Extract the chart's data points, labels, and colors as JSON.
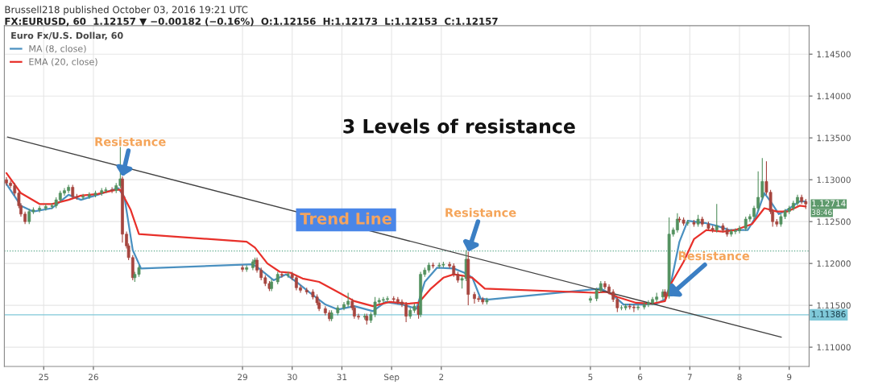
{
  "chart_data": {
    "type": "candlestick",
    "title": "Brussell218 published October 03, 2016 19:21 UTC",
    "subtitle": "FX:EURUSD, 60  1.12157 ▼ −0.00182 (−0.16%)  O:1.12156  H:1.12173  L:1.12153  C:1.12157",
    "legend_title": "Euro Fx/U.S. Dollar, 60",
    "x": [
      "2016-08-24T06:00",
      "2016-08-24T08:00",
      "2016-08-24T10:00",
      "2016-08-24T12:00",
      "2016-08-24T13:00",
      "2016-08-24T15:00",
      "2016-08-24T17:00",
      "2016-08-24T19:00",
      "2016-08-24T22:00",
      "2016-08-25T01:00",
      "2016-08-25T04:00",
      "2016-08-25T06:00",
      "2016-08-25T08:00",
      "2016-08-25T10:00",
      "2016-08-25T12:00",
      "2016-08-25T14:00",
      "2016-08-25T16:00",
      "2016-08-25T19:00",
      "2016-08-25T22:00",
      "2016-08-26T01:00",
      "2016-08-26T04:00",
      "2016-08-26T06:00",
      "2016-08-26T09:00",
      "2016-08-26T11:00",
      "2016-08-26T13:00",
      "2016-08-26T14:00",
      "2016-08-26T16:00",
      "2016-08-26T17:00",
      "2016-08-26T19:00",
      "2016-08-26T20:00",
      "2016-08-26T22:00",
      "2016-08-29T00:00",
      "2016-08-29T02:00",
      "2016-08-29T05:00",
      "2016-08-29T06:00",
      "2016-08-29T07:00",
      "2016-08-29T09:00",
      "2016-08-29T11:00",
      "2016-08-29T13:00",
      "2016-08-29T14:00",
      "2016-08-29T17:00",
      "2016-08-29T19:00",
      "2016-08-29T22:00",
      "2016-08-30T00:00",
      "2016-08-30T02:00",
      "2016-08-30T04:00",
      "2016-08-30T07:00",
      "2016-08-30T10:00",
      "2016-08-30T12:00",
      "2016-08-30T13:00",
      "2016-08-30T16:00",
      "2016-08-30T18:00",
      "2016-08-30T19:00",
      "2016-08-30T22:00",
      "2016-08-31T01:00",
      "2016-08-31T03:00",
      "2016-08-31T05:00",
      "2016-08-31T06:00",
      "2016-08-31T08:00",
      "2016-08-31T11:00",
      "2016-08-31T12:00",
      "2016-08-31T14:00",
      "2016-08-31T16:00",
      "2016-08-31T18:00",
      "2016-08-31T20:00",
      "2016-08-31T22:00",
      "2016-09-01T01:00",
      "2016-09-01T03:00",
      "2016-09-01T05:00",
      "2016-09-01T07:00",
      "2016-09-01T09:00",
      "2016-09-01T11:00",
      "2016-09-01T13:00",
      "2016-09-01T14:00",
      "2016-09-01T16:00",
      "2016-09-01T18:00",
      "2016-09-01T20:00",
      "2016-09-01T23:00",
      "2016-09-02T01:00",
      "2016-09-02T04:00",
      "2016-09-02T06:00",
      "2016-09-02T08:00",
      "2016-09-02T10:00",
      "2016-09-02T12:00",
      "2016-09-02T13:00",
      "2016-09-02T16:00",
      "2016-09-02T18:00",
      "2016-09-02T20:00",
      "2016-09-02T22:00",
      "2016-09-05T00:00",
      "2016-09-05T03:00",
      "2016-09-05T05:00",
      "2016-09-05T07:00",
      "2016-09-05T09:00",
      "2016-09-05T11:00",
      "2016-09-05T13:00",
      "2016-09-05T15:00",
      "2016-09-05T17:00",
      "2016-09-05T19:00",
      "2016-09-05T21:00",
      "2016-09-05T23:00",
      "2016-09-06T02:00",
      "2016-09-06T04:00",
      "2016-09-06T06:00",
      "2016-09-06T08:00",
      "2016-09-06T11:00",
      "2016-09-06T12:00",
      "2016-09-06T14:00",
      "2016-09-06T16:00",
      "2016-09-06T18:00",
      "2016-09-06T19:00",
      "2016-09-06T21:00",
      "2016-09-06T23:00",
      "2016-09-07T02:00",
      "2016-09-07T04:00",
      "2016-09-07T06:00",
      "2016-09-07T09:00",
      "2016-09-07T11:00",
      "2016-09-07T13:00",
      "2016-09-07T16:00",
      "2016-09-07T18:00",
      "2016-09-07T20:00",
      "2016-09-07T22:00",
      "2016-09-08T00:00",
      "2016-09-08T03:00",
      "2016-09-08T05:00",
      "2016-09-08T07:00",
      "2016-09-08T09:00",
      "2016-09-08T11:00",
      "2016-09-08T13:00",
      "2016-09-08T15:00",
      "2016-09-08T16:00",
      "2016-09-08T18:00",
      "2016-09-08T20:00",
      "2016-09-08T22:00",
      "2016-09-09T00:00",
      "2016-09-09T02:00",
      "2016-09-09T04:00",
      "2016-09-09T06:00",
      "2016-09-09T08:00"
    ],
    "ohlc": [
      [
        1.13,
        1.1303,
        1.1293,
        1.1296
      ],
      [
        1.1296,
        1.1299,
        1.129,
        1.1293
      ],
      [
        1.1293,
        1.1296,
        1.1281,
        1.1284
      ],
      [
        1.1284,
        1.1287,
        1.1266,
        1.1269
      ],
      [
        1.1269,
        1.1272,
        1.1256,
        1.1259
      ],
      [
        1.1259,
        1.1262,
        1.1247,
        1.125
      ],
      [
        1.125,
        1.1265,
        1.1247,
        1.1262
      ],
      [
        1.1262,
        1.1267,
        1.1259,
        1.1264
      ],
      [
        1.1264,
        1.1269,
        1.1261,
        1.1266
      ],
      [
        1.1266,
        1.1271,
        1.1263,
        1.1268
      ],
      [
        1.1268,
        1.1272,
        1.1265,
        1.1269
      ],
      [
        1.1269,
        1.1279,
        1.1266,
        1.1276
      ],
      [
        1.1276,
        1.1287,
        1.1273,
        1.1284
      ],
      [
        1.1284,
        1.129,
        1.1281,
        1.1287
      ],
      [
        1.1287,
        1.1294,
        1.1284,
        1.1291
      ],
      [
        1.1291,
        1.1294,
        1.1277,
        1.128
      ],
      [
        1.128,
        1.1283,
        1.1276,
        1.1279
      ],
      [
        1.1279,
        1.1283,
        1.1276,
        1.128
      ],
      [
        1.128,
        1.1285,
        1.1277,
        1.1282
      ],
      [
        1.1282,
        1.1287,
        1.1279,
        1.1284
      ],
      [
        1.1284,
        1.129,
        1.1281,
        1.1287
      ],
      [
        1.1287,
        1.1291,
        1.1284,
        1.1288
      ],
      [
        1.1288,
        1.1291,
        1.1284,
        1.1287
      ],
      [
        1.1287,
        1.1296,
        1.1284,
        1.1293
      ],
      [
        1.1293,
        1.1339,
        1.129,
        1.1301
      ],
      [
        1.1301,
        1.1304,
        1.1225,
        1.1235
      ],
      [
        1.1235,
        1.1238,
        1.1218,
        1.1221
      ],
      [
        1.1221,
        1.1224,
        1.1204,
        1.1207
      ],
      [
        1.1207,
        1.121,
        1.118,
        1.1183
      ],
      [
        1.1183,
        1.119,
        1.1178,
        1.1187
      ],
      [
        1.1187,
        1.1198,
        1.1184,
        1.1195
      ],
      [
        1.1195,
        1.1198,
        1.119,
        1.1193
      ],
      [
        1.1193,
        1.1198,
        1.119,
        1.1195
      ],
      [
        1.1195,
        1.1205,
        1.1192,
        1.1202
      ],
      [
        1.1202,
        1.1207,
        1.1199,
        1.1204
      ],
      [
        1.1204,
        1.1207,
        1.1189,
        1.1192
      ],
      [
        1.1192,
        1.1195,
        1.118,
        1.1183
      ],
      [
        1.1183,
        1.1186,
        1.1173,
        1.1176
      ],
      [
        1.1176,
        1.1179,
        1.1167,
        1.117
      ],
      [
        1.117,
        1.1181,
        1.1167,
        1.1178
      ],
      [
        1.1178,
        1.119,
        1.1175,
        1.1187
      ],
      [
        1.1187,
        1.119,
        1.1183,
        1.1186
      ],
      [
        1.1186,
        1.119,
        1.1183,
        1.1187
      ],
      [
        1.1187,
        1.119,
        1.118,
        1.1183
      ],
      [
        1.1183,
        1.1186,
        1.1168,
        1.1171
      ],
      [
        1.1171,
        1.1174,
        1.1165,
        1.1168
      ],
      [
        1.1168,
        1.1171,
        1.1163,
        1.1166
      ],
      [
        1.1166,
        1.1169,
        1.1157,
        1.116
      ],
      [
        1.116,
        1.1163,
        1.115,
        1.1153
      ],
      [
        1.1153,
        1.1156,
        1.1143,
        1.1146
      ],
      [
        1.1146,
        1.1149,
        1.1138,
        1.1141
      ],
      [
        1.1141,
        1.1144,
        1.1131,
        1.1134
      ],
      [
        1.1134,
        1.1144,
        1.1131,
        1.1141
      ],
      [
        1.1141,
        1.115,
        1.1138,
        1.1147
      ],
      [
        1.1147,
        1.1154,
        1.1144,
        1.1151
      ],
      [
        1.1151,
        1.1165,
        1.1148,
        1.1155
      ],
      [
        1.1155,
        1.1158,
        1.1144,
        1.1147
      ],
      [
        1.1147,
        1.115,
        1.1134,
        1.1137
      ],
      [
        1.1137,
        1.114,
        1.1133,
        1.1136
      ],
      [
        1.1136,
        1.114,
        1.1133,
        1.1137
      ],
      [
        1.1137,
        1.114,
        1.1127,
        1.1132
      ],
      [
        1.1132,
        1.1142,
        1.1129,
        1.1139
      ],
      [
        1.1139,
        1.116,
        1.1136,
        1.1154
      ],
      [
        1.1154,
        1.1159,
        1.1151,
        1.1156
      ],
      [
        1.1156,
        1.116,
        1.1153,
        1.1157
      ],
      [
        1.1157,
        1.1161,
        1.1154,
        1.1158
      ],
      [
        1.1158,
        1.1161,
        1.1154,
        1.1157
      ],
      [
        1.1157,
        1.116,
        1.1151,
        1.1154
      ],
      [
        1.1154,
        1.1157,
        1.1148,
        1.1151
      ],
      [
        1.1151,
        1.1154,
        1.113,
        1.1137
      ],
      [
        1.1137,
        1.1147,
        1.1134,
        1.1144
      ],
      [
        1.1144,
        1.1152,
        1.1141,
        1.1149
      ],
      [
        1.1149,
        1.1152,
        1.1134,
        1.1139
      ],
      [
        1.1139,
        1.119,
        1.1136,
        1.1187
      ],
      [
        1.1187,
        1.1195,
        1.1184,
        1.1192
      ],
      [
        1.1192,
        1.1201,
        1.1189,
        1.1198
      ],
      [
        1.1198,
        1.1201,
        1.1194,
        1.1197
      ],
      [
        1.1197,
        1.1201,
        1.1194,
        1.1198
      ],
      [
        1.1198,
        1.1202,
        1.1195,
        1.1199
      ],
      [
        1.1199,
        1.1202,
        1.1194,
        1.1197
      ],
      [
        1.1197,
        1.12,
        1.1184,
        1.1187
      ],
      [
        1.1187,
        1.119,
        1.1177,
        1.118
      ],
      [
        1.118,
        1.1185,
        1.117,
        1.1182
      ],
      [
        1.1182,
        1.1216,
        1.1179,
        1.1205
      ],
      [
        1.1205,
        1.1214,
        1.115,
        1.1163
      ],
      [
        1.1163,
        1.1166,
        1.1152,
        1.1158
      ],
      [
        1.1158,
        1.1161,
        1.1154,
        1.1157
      ],
      [
        1.1157,
        1.116,
        1.1151,
        1.1154
      ],
      [
        1.1154,
        1.1159,
        1.1151,
        1.1156
      ],
      [
        1.1156,
        1.1161,
        1.1153,
        1.1158
      ],
      [
        1.1158,
        1.1171,
        1.1155,
        1.1168
      ],
      [
        1.1168,
        1.1179,
        1.1165,
        1.1176
      ],
      [
        1.1176,
        1.1179,
        1.1169,
        1.1172
      ],
      [
        1.1172,
        1.1175,
        1.1163,
        1.1166
      ],
      [
        1.1166,
        1.1169,
        1.1154,
        1.1157
      ],
      [
        1.1157,
        1.116,
        1.1142,
        1.1147
      ],
      [
        1.1147,
        1.115,
        1.1144,
        1.1147
      ],
      [
        1.1147,
        1.1152,
        1.1144,
        1.1149
      ],
      [
        1.1149,
        1.1152,
        1.1145,
        1.1148
      ],
      [
        1.1148,
        1.1151,
        1.1142,
        1.1147
      ],
      [
        1.1147,
        1.1151,
        1.1144,
        1.1148
      ],
      [
        1.1148,
        1.1154,
        1.1145,
        1.1151
      ],
      [
        1.1151,
        1.1156,
        1.1148,
        1.1153
      ],
      [
        1.1153,
        1.116,
        1.115,
        1.1157
      ],
      [
        1.1157,
        1.1165,
        1.1154,
        1.116
      ],
      [
        1.116,
        1.1169,
        1.1157,
        1.1166
      ],
      [
        1.1166,
        1.1169,
        1.1158,
        1.1161
      ],
      [
        1.1161,
        1.1255,
        1.1158,
        1.1235
      ],
      [
        1.1235,
        1.1243,
        1.1232,
        1.124
      ],
      [
        1.124,
        1.126,
        1.1237,
        1.1253
      ],
      [
        1.1253,
        1.1256,
        1.1249,
        1.1252
      ],
      [
        1.1252,
        1.1255,
        1.1245,
        1.1248
      ],
      [
        1.1248,
        1.1252,
        1.1245,
        1.1249
      ],
      [
        1.1249,
        1.1252,
        1.1244,
        1.1247
      ],
      [
        1.1247,
        1.1258,
        1.1244,
        1.1253
      ],
      [
        1.1253,
        1.1256,
        1.1244,
        1.1247
      ],
      [
        1.1247,
        1.125,
        1.1239,
        1.1242
      ],
      [
        1.1242,
        1.1245,
        1.1237,
        1.124
      ],
      [
        1.124,
        1.1271,
        1.1237,
        1.1245
      ],
      [
        1.1245,
        1.1248,
        1.1237,
        1.124
      ],
      [
        1.124,
        1.1243,
        1.1232,
        1.1235
      ],
      [
        1.1235,
        1.1241,
        1.1232,
        1.1238
      ],
      [
        1.1238,
        1.1242,
        1.1235,
        1.1239
      ],
      [
        1.1239,
        1.1245,
        1.1236,
        1.1242
      ],
      [
        1.1242,
        1.1256,
        1.1239,
        1.1253
      ],
      [
        1.1253,
        1.1259,
        1.125,
        1.1256
      ],
      [
        1.1256,
        1.1269,
        1.1253,
        1.1266
      ],
      [
        1.1266,
        1.131,
        1.1263,
        1.1279
      ],
      [
        1.1279,
        1.1326,
        1.1276,
        1.1298
      ],
      [
        1.1298,
        1.1322,
        1.1282,
        1.1285
      ],
      [
        1.1285,
        1.1288,
        1.1259,
        1.1262
      ],
      [
        1.1262,
        1.1265,
        1.1244,
        1.125
      ],
      [
        1.125,
        1.1253,
        1.1244,
        1.1247
      ],
      [
        1.1247,
        1.1259,
        1.1244,
        1.1256
      ],
      [
        1.1256,
        1.1265,
        1.1253,
        1.1262
      ],
      [
        1.1262,
        1.1269,
        1.1259,
        1.1266
      ],
      [
        1.1266,
        1.1275,
        1.1263,
        1.1272
      ],
      [
        1.1272,
        1.1282,
        1.1269,
        1.1279
      ],
      [
        1.1279,
        1.1282,
        1.1271,
        1.1274
      ],
      [
        1.1274,
        1.1277,
        1.1265,
        1.1271
      ]
    ],
    "colors": [
      "#a6453f",
      "#a6453f",
      "#a6453f",
      "#a6453f",
      "#a6453f",
      "#a6453f",
      "#53915f",
      "#53915f",
      "#53915f",
      "#53915f",
      "#53915f",
      "#53915f",
      "#53915f",
      "#53915f",
      "#53915f",
      "#a6453f",
      "#a6453f",
      "#53915f",
      "#53915f",
      "#53915f",
      "#53915f",
      "#53915f",
      "#a6453f",
      "#53915f",
      "#53915f",
      "#a6453f",
      "#a6453f",
      "#a6453f",
      "#a6453f",
      "#53915f",
      "#53915f",
      "#a6453f",
      "#53915f",
      "#53915f",
      "#53915f",
      "#a6453f",
      "#a6453f",
      "#a6453f",
      "#a6453f",
      "#53915f",
      "#53915f",
      "#a6453f",
      "#53915f",
      "#a6453f",
      "#a6453f",
      "#a6453f",
      "#a6453f",
      "#a6453f",
      "#a6453f",
      "#a6453f",
      "#a6453f",
      "#a6453f",
      "#53915f",
      "#53915f",
      "#53915f",
      "#53915f",
      "#a6453f",
      "#a6453f",
      "#a6453f",
      "#53915f",
      "#a6453f",
      "#53915f",
      "#53915f",
      "#53915f",
      "#53915f",
      "#53915f",
      "#a6453f",
      "#a6453f",
      "#a6453f",
      "#a6453f",
      "#53915f",
      "#53915f",
      "#a6453f",
      "#53915f",
      "#53915f",
      "#53915f",
      "#a6453f",
      "#53915f",
      "#53915f",
      "#a6453f",
      "#a6453f",
      "#a6453f",
      "#53915f",
      "#53915f",
      "#a6453f",
      "#a6453f",
      "#a6453f",
      "#a6453f",
      "#53915f",
      "#53915f",
      "#53915f",
      "#53915f",
      "#a6453f",
      "#a6453f",
      "#a6453f",
      "#a6453f",
      "#53915f",
      "#53915f",
      "#a6453f",
      "#a6453f",
      "#53915f",
      "#53915f",
      "#53915f",
      "#53915f",
      "#53915f",
      "#53915f",
      "#a6453f",
      "#53915f",
      "#53915f",
      "#53915f",
      "#a6453f",
      "#a6453f",
      "#53915f",
      "#a6453f",
      "#53915f",
      "#a6453f",
      "#a6453f",
      "#a6453f",
      "#53915f",
      "#a6453f",
      "#a6453f",
      "#53915f",
      "#53915f",
      "#53915f",
      "#53915f",
      "#53915f",
      "#53915f",
      "#53915f",
      "#53915f",
      "#a6453f",
      "#a6453f",
      "#a6453f",
      "#a6453f",
      "#53915f",
      "#53915f",
      "#53915f",
      "#53915f",
      "#53915f",
      "#a6453f",
      "#a6453f"
    ],
    "series": [
      {
        "type": "line",
        "name": "MA (8, close)",
        "color": "#4a90c0",
        "x": [
          "2016-08-24T06:00",
          "2016-08-24T13:00",
          "2016-08-24T19:00",
          "2016-08-25T04:00",
          "2016-08-25T12:00",
          "2016-08-25T18:00",
          "2016-08-26T02:00",
          "2016-08-26T12:00",
          "2016-08-26T15:00",
          "2016-08-26T19:00",
          "2016-08-26T23:00",
          "2016-08-29T05:00",
          "2016-08-29T08:00",
          "2016-08-29T15:00",
          "2016-08-29T21:00",
          "2016-08-30T02:00",
          "2016-08-30T08:00",
          "2016-08-30T16:00",
          "2016-08-30T22:00",
          "2016-08-31T06:00",
          "2016-08-31T15:00",
          "2016-08-31T21:00",
          "2016-09-01T05:00",
          "2016-09-01T12:00",
          "2016-09-01T16:00",
          "2016-09-01T22:00",
          "2016-09-02T06:00",
          "2016-09-02T11:00",
          "2016-09-02T15:00",
          "2016-09-02T19:00",
          "2016-09-02T23:00",
          "2016-09-05T05:00",
          "2016-09-05T11:00",
          "2016-09-05T16:00",
          "2016-09-06T01:00",
          "2016-09-06T08:00",
          "2016-09-06T12:00",
          "2016-09-06T15:00",
          "2016-09-06T19:00",
          "2016-09-06T23:00",
          "2016-09-07T08:00",
          "2016-09-07T13:00",
          "2016-09-07T19:00",
          "2016-09-08T04:00",
          "2016-09-08T08:00",
          "2016-09-08T12:00",
          "2016-09-08T15:00",
          "2016-09-08T19:00",
          "2016-09-08T23:00",
          "2016-09-09T05:00",
          "2016-09-09T08:00"
        ],
        "values": [
          1.1295,
          1.1269,
          1.1262,
          1.1266,
          1.1282,
          1.1276,
          1.1282,
          1.129,
          1.1279,
          1.1216,
          1.1194,
          1.1199,
          1.1194,
          1.118,
          1.1187,
          1.1178,
          1.1166,
          1.1151,
          1.1145,
          1.1149,
          1.1143,
          1.1154,
          1.1151,
          1.1146,
          1.1178,
          1.1195,
          1.1194,
          1.1189,
          1.1183,
          1.1158,
          1.1157,
          1.117,
          1.1162,
          1.1151,
          1.1151,
          1.1152,
          1.1157,
          1.1178,
          1.1226,
          1.1251,
          1.1248,
          1.1245,
          1.124,
          1.124,
          1.1256,
          1.1284,
          1.1274,
          1.1259,
          1.1264,
          1.1274,
          1.1274
        ]
      },
      {
        "type": "line",
        "name": "EMA (20, close)",
        "color": "#e8302a",
        "x": [
          "2016-08-24T06:00",
          "2016-08-24T13:00",
          "2016-08-24T22:00",
          "2016-08-25T04:00",
          "2016-08-25T12:00",
          "2016-08-25T18:00",
          "2016-08-26T02:00",
          "2016-08-26T11:00",
          "2016-08-26T13:00",
          "2016-08-26T18:00",
          "2016-08-26T22:00",
          "2016-08-29T02:00",
          "2016-08-29T06:00",
          "2016-08-29T12:00",
          "2016-08-29T18:00",
          "2016-08-29T23:00",
          "2016-08-30T05:00",
          "2016-08-30T13:00",
          "2016-08-30T22:00",
          "2016-08-31T06:00",
          "2016-08-31T15:00",
          "2016-08-31T23:00",
          "2016-09-01T08:00",
          "2016-09-01T13:00",
          "2016-09-01T19:00",
          "2016-09-02T01:00",
          "2016-09-02T06:00",
          "2016-09-02T11:00",
          "2016-09-02T15:00",
          "2016-09-02T21:00",
          "2016-09-05T02:00",
          "2016-09-05T08:00",
          "2016-09-05T13:00",
          "2016-09-05T22:00",
          "2016-09-06T06:00",
          "2016-09-06T12:00",
          "2016-09-06T15:00",
          "2016-09-06T21:00",
          "2016-09-07T02:00",
          "2016-09-07T08:00",
          "2016-09-07T16:00",
          "2016-09-07T22:00",
          "2016-09-08T06:00",
          "2016-09-08T12:00",
          "2016-09-08T18:00",
          "2016-09-08T23:00",
          "2016-09-09T05:00",
          "2016-09-09T08:00"
        ],
        "values": [
          1.1308,
          1.1284,
          1.1271,
          1.1271,
          1.1276,
          1.1281,
          1.1283,
          1.1288,
          1.1288,
          1.1264,
          1.1235,
          1.1226,
          1.1219,
          1.12,
          1.119,
          1.1189,
          1.1182,
          1.1178,
          1.1166,
          1.1155,
          1.1149,
          1.1154,
          1.1152,
          1.1153,
          1.117,
          1.1183,
          1.1187,
          1.1185,
          1.1183,
          1.117,
          1.1165,
          1.1166,
          1.116,
          1.1153,
          1.1152,
          1.1155,
          1.1176,
          1.1202,
          1.1229,
          1.124,
          1.1238,
          1.124,
          1.1247,
          1.1266,
          1.1262,
          1.1262,
          1.1269,
          1.1268
        ]
      },
      {
        "type": "line",
        "color": "#404040",
        "x": [
          "2016-08-24T06:29",
          "2016-09-08T20:10"
        ],
        "values": [
          1.1351,
          1.1112
        ]
      }
    ],
    "xlim": [
      "2016-08-24T05:00",
      "2016-09-09T09:36"
    ],
    "xticks": [
      {
        "value": "2016-08-25",
        "label": "25"
      },
      {
        "value": "2016-08-26",
        "label": "26"
      },
      {
        "value": "2016-08-29",
        "label": "29"
      },
      {
        "value": "2016-08-30",
        "label": "30"
      },
      {
        "value": "2016-08-31",
        "label": "31"
      },
      {
        "value": "2016-09-01",
        "label": "Sep"
      },
      {
        "value": "2016-09-02",
        "label": "2"
      },
      {
        "value": "2016-09-05",
        "label": "5"
      },
      {
        "value": "2016-09-06",
        "label": "6"
      },
      {
        "value": "2016-09-07",
        "label": "7"
      },
      {
        "value": "2016-09-08",
        "label": "8"
      },
      {
        "value": "2016-09-09",
        "label": "9"
      }
    ],
    "ylim": [
      1.1077,
      1.1484
    ],
    "yticks": [
      {
        "value": 1.11,
        "label": "1.11000"
      },
      {
        "value": 1.115,
        "label": "1.11500"
      },
      {
        "value": 1.12,
        "label": "1.12000"
      },
      {
        "value": 1.125,
        "label": "1.12500"
      },
      {
        "value": 1.13,
        "label": "1.13000"
      },
      {
        "value": 1.135,
        "label": "1.13500"
      },
      {
        "value": 1.14,
        "label": "1.14000"
      },
      {
        "value": 1.145,
        "label": "1.14500"
      }
    ],
    "ref_lines": [
      {
        "axis": "y",
        "value": 1.11386,
        "label": "1.11386",
        "color": "#7fc8d8",
        "line_style": "solid"
      },
      {
        "axis": "y",
        "value": 1.1215,
        "color": "#5aa88a",
        "line_style": "dotted"
      }
    ],
    "annotations": [
      "3 Levels of resistance",
      {
        "text": "Resistance",
        "x": "2016-08-26T14:00",
        "y": 1.1304
      },
      {
        "text": "Trend Line",
        "x": "2016-08-31T02:00",
        "y": 1.1252
      },
      {
        "text": "Resistance",
        "x": "2016-09-02T13:00",
        "y": 1.1214
      },
      {
        "text": "Resistance",
        "x": "2016-09-06T14:00",
        "y": 1.1161
      },
      "1.12714",
      "38:46"
    ],
    "grid": true,
    "legend": "top left"
  }
}
